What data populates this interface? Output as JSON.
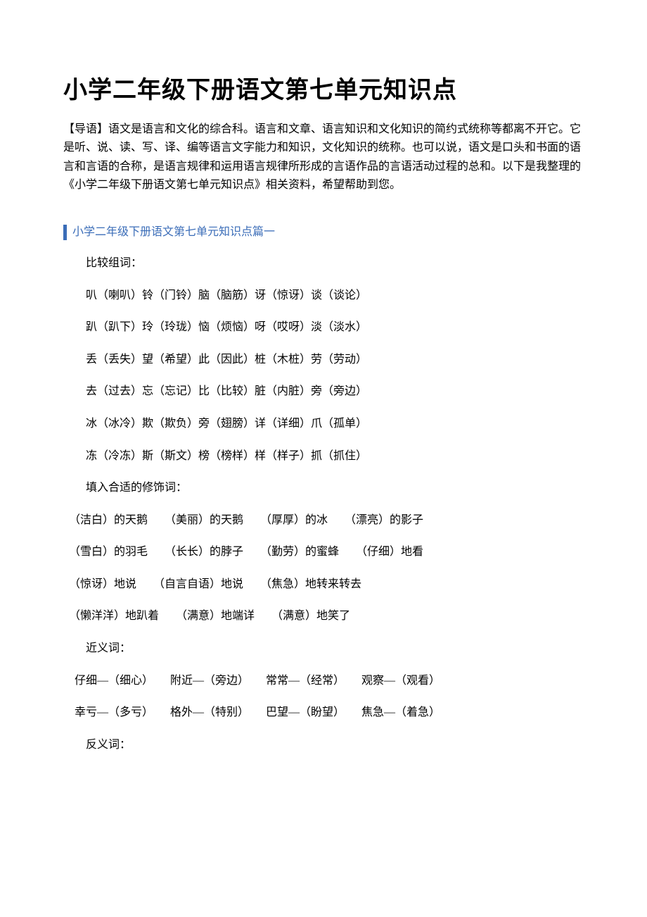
{
  "title": "小学二年级下册语文第七单元知识点",
  "intro": "【导语】语文是语言和文化的综合科。语言和文章、语言知识和文化知识的简约式统称等都离不开它。它是听、说、读、写、译、编等语言文字能力和知识，文化知识的统称。也可以说，语文是口头和书面的语言和言语的合称，是语言规律和运用语言规律所形成的言语作品的言语活动过程的总和。以下是我整理的《小学二年级下册语文第七单元知识点》相关资料，希望帮助到您。",
  "section1": {
    "header": "小学二年级下册语文第七单元知识点篇一",
    "p1": "比较组词：",
    "p2": "叭（喇叭）铃（门铃）脑（脑筋）讶（惊讶）谈（谈论）",
    "p3": "趴（趴下）玲（玲珑）恼（烦恼）呀（哎呀）淡（淡水）",
    "p4": "丢（丢失）望（希望）此（因此）桩（木桩）劳（劳动）",
    "p5": "去（过去）忘（忘记）比（比较）脏（内脏）旁（旁边）",
    "p6": "冰（冰冷）欺（欺负）旁（翅膀）详（详细）爪（孤单）",
    "p7": "冻（冷冻）斯（斯文）榜（榜样）样（样子）抓（抓住）",
    "p8": "填入合适的修饰词：",
    "p9": "　（洁白）的天鹅　　（美丽）的天鹅　　（厚厚）的冰　　（漂亮）的影子",
    "p10": "　（雪白）的羽毛　　（长长）的脖子　　（勤劳）的蜜蜂　　（仔细）地看",
    "p11": "　（惊讶）地说　　（自言自语）地说　　（焦急）地转来转去",
    "p12": "　（懒洋洋）地趴着　　（满意）地端详　　（满意）地笑了",
    "p13": "近义词：",
    "p14": "　仔细—（细心）　　附近—（旁边）　　常常—（经常）　　观察—（观看）",
    "p15": "　幸亏—（多亏）　　格外—（特别）　　巴望—（盼望）　　焦急—（着急）",
    "p16": "反义词："
  },
  "colors": {
    "text": "#000000",
    "accent": "#3b6db8",
    "background": "#ffffff"
  },
  "typography": {
    "title_fontsize": 34,
    "body_fontsize": 16,
    "title_family": "SimHei",
    "body_family": "SimSun"
  }
}
